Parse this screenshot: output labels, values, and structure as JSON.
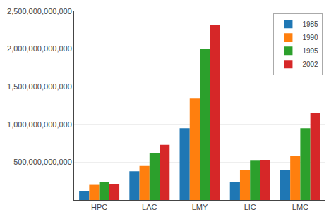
{
  "chart_data": {
    "type": "bar",
    "categories": [
      "HPC",
      "LAC",
      "LMY",
      "LIC",
      "LMC"
    ],
    "series": [
      {
        "name": "1985",
        "values": [
          120000000000,
          380000000000,
          950000000000,
          240000000000,
          400000000000
        ]
      },
      {
        "name": "1990",
        "values": [
          200000000000,
          450000000000,
          1350000000000,
          400000000000,
          580000000000
        ]
      },
      {
        "name": "1995",
        "values": [
          240000000000,
          620000000000,
          2000000000000,
          520000000000,
          950000000000
        ]
      },
      {
        "name": "2002",
        "values": [
          210000000000,
          730000000000,
          2320000000000,
          530000000000,
          1150000000000
        ]
      }
    ],
    "ylim": [
      0,
      2500000000000
    ],
    "yticks": [
      {
        "value": 500000000000,
        "label": "500,000,000,000"
      },
      {
        "value": 1000000000000,
        "label": "1,000,000,000,000"
      },
      {
        "value": 1500000000000,
        "label": "1,500,000,000,000"
      },
      {
        "value": 2000000000000,
        "label": "2,000,000,000,000"
      },
      {
        "value": 2500000000000,
        "label": "2,500,000,000,000"
      }
    ],
    "grid": true,
    "legend": "upper right"
  }
}
